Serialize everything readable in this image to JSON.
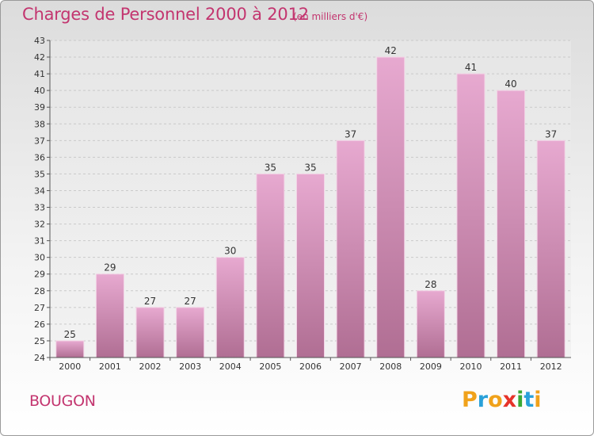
{
  "header": {
    "title": "Charges de Personnel 2000 à 2012",
    "subtitle": "(en milliers d'€)"
  },
  "footer": {
    "commune": "BOUGON",
    "brand_letters": [
      "P",
      "r",
      "o",
      "x",
      "i",
      "t",
      "i"
    ],
    "brand_colors": [
      "#f0a21b",
      "#2aa1d9",
      "#f0a21b",
      "#e6332a",
      "#3aa935",
      "#2aa1d9",
      "#f0a21b"
    ]
  },
  "chart_data": {
    "type": "bar",
    "title": "Charges de Personnel 2000 à 2012",
    "subtitle": "(en milliers d'€)",
    "xlabel": "",
    "ylabel": "",
    "categories": [
      "2000",
      "2001",
      "2002",
      "2003",
      "2004",
      "2005",
      "2006",
      "2007",
      "2008",
      "2009",
      "2010",
      "2011",
      "2012"
    ],
    "values": [
      25,
      29,
      27,
      27,
      30,
      35,
      35,
      37,
      42,
      28,
      41,
      40,
      37
    ],
    "data_labels": [
      "25",
      "29",
      "27",
      "27",
      "30",
      "35",
      "35",
      "37",
      "42",
      "28",
      "41",
      "40",
      "37"
    ],
    "ylim": [
      24,
      43
    ],
    "yticks": [
      "24",
      "25",
      "26",
      "27",
      "28",
      "29",
      "30",
      "31",
      "32",
      "33",
      "34",
      "35",
      "36",
      "37",
      "38",
      "39",
      "40",
      "41",
      "42",
      "43"
    ],
    "grid": true,
    "legend": "none",
    "bar_color": "#d98fb8",
    "text_color": "#c3356f"
  }
}
